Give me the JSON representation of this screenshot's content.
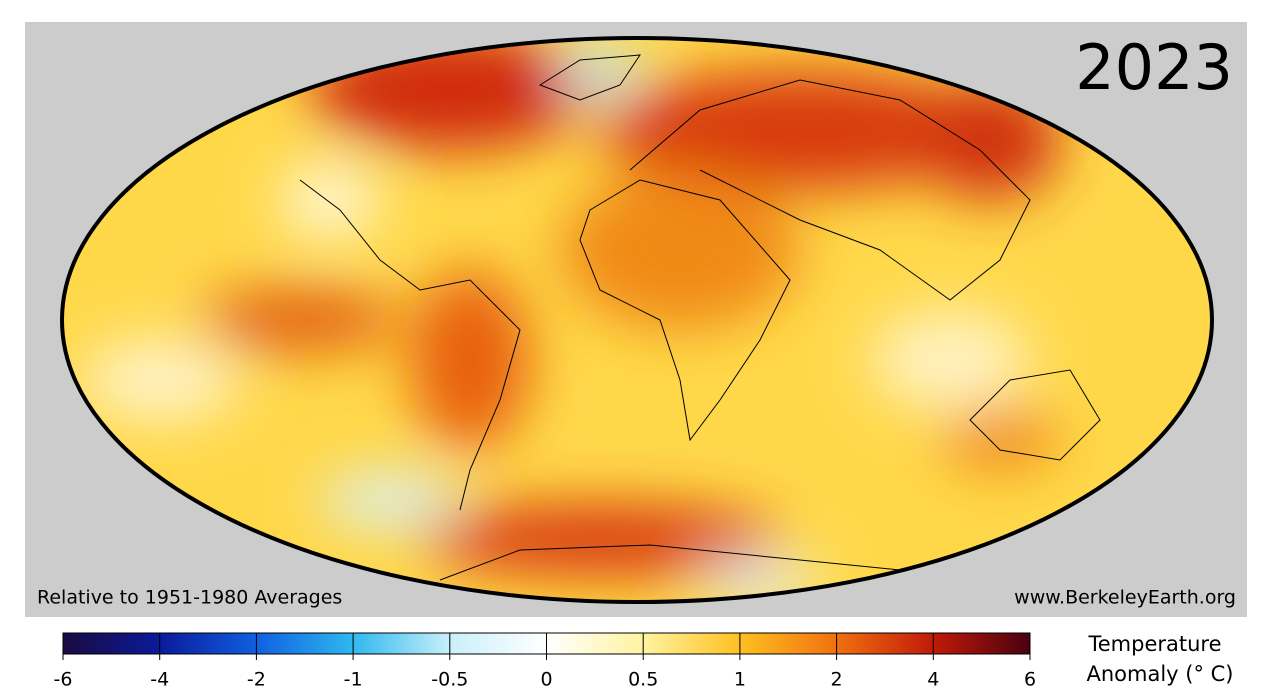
{
  "title": "2023",
  "note_left": "Relative to 1951-1980 Averages",
  "note_right": "www.BerkeleyEarth.org",
  "colorbar": {
    "label": [
      "Temperature",
      "Anomaly (° C)"
    ],
    "ticks": [
      -6,
      -4,
      -2,
      -1,
      -0.5,
      0,
      0.5,
      1,
      2,
      4,
      6
    ]
  }
}
